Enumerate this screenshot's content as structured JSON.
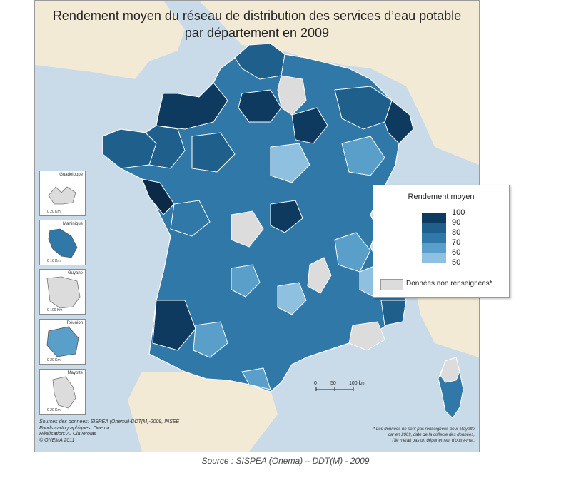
{
  "title": {
    "line1": "Rendement moyen du réseau de distribution des services d’eau potable",
    "line2": "par département en 2009"
  },
  "colors": {
    "sea": "#c9dbe8",
    "land_neighbor": "#f3ead6",
    "border": "#ffffff",
    "no_data": "#dcdcdc",
    "class_90_100": "#0e3a5f",
    "class_80_90": "#1f5f8b",
    "class_70_80": "#2f78a8",
    "class_60_70": "#5a9fca",
    "class_50_60": "#8fc0e0"
  },
  "legend": {
    "title": "Rendement moyen",
    "values": [
      "100",
      "90",
      "80",
      "70",
      "60",
      "50"
    ],
    "no_data_label": "Données non renseignées*"
  },
  "insets": [
    {
      "name": "Guadeloupe",
      "scale": "0    20 Km"
    },
    {
      "name": "Martinique",
      "scale": "0    10 Km"
    },
    {
      "name": "Guyane",
      "scale": "0   100 Km"
    },
    {
      "name": "Réunion",
      "scale": "0    20 Km"
    },
    {
      "name": "Mayotte",
      "scale": "0    20 Km"
    }
  ],
  "scale_bar": {
    "zero": "0",
    "mid": "50",
    "end": "100 km"
  },
  "credits": {
    "line1": "Sources des données: SISPEA (Onema)-DDT(M)-2009, INSEE",
    "line2": "Fonds cartographiques: Onema",
    "line3": "Réalisation: A. Claverolas",
    "line4": "© ONEMA 2011"
  },
  "note": {
    "line1": "* Les données ne sont pas renseignées pour Mayotte",
    "line2": "car en 2009, date de la collecte des données,",
    "line3": "l’île n’était pas un département d’outre-mer."
  },
  "source": "Source : SISPEA (Onema) – DDT(M) - 2009"
}
